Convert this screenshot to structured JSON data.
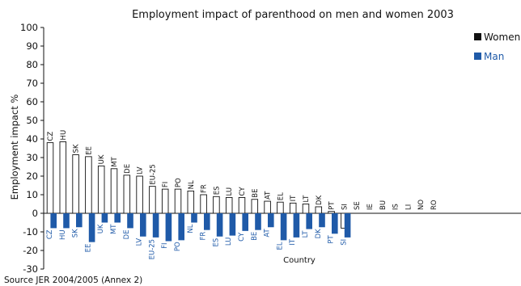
{
  "chart_data": {
    "type": "bar",
    "title": "Employment impact of parenthood on men and women 2003",
    "xlabel": "Country",
    "ylabel": "Employment impact %",
    "ylim": [
      -30,
      100
    ],
    "yticks": [
      -30,
      -20,
      -10,
      0,
      10,
      20,
      30,
      40,
      50,
      60,
      70,
      80,
      90,
      100
    ],
    "legend_position": "top-right",
    "categories_women": [
      "CZ",
      "HU",
      "SK",
      "EE",
      "UK",
      "MT",
      "DE",
      "LV",
      "EU-25",
      "FI",
      "PO",
      "NL",
      "FR",
      "ES",
      "LU",
      "CY",
      "BE",
      "AT",
      "EL",
      "IT",
      "LT",
      "DK",
      "PT",
      "SI",
      "SE",
      "IE",
      "BU",
      "IS",
      "LI",
      "NO",
      "RO"
    ],
    "categories_men": [
      "CZ",
      "HU",
      "SK",
      "EE",
      "UK",
      "MT",
      "DE",
      "LV",
      "EU-25",
      "FI",
      "PO",
      "NL",
      "FR",
      "ES",
      "LU",
      "CY",
      "BE",
      "AT",
      "EL",
      "IT",
      "LT",
      "DK",
      "PT",
      "SI"
    ],
    "series": [
      {
        "name": "Women",
        "color": "#ffffff",
        "values": [
          38,
          38.5,
          31.5,
          30.5,
          25.5,
          24,
          20.5,
          20,
          14.5,
          13,
          13,
          12,
          10,
          9,
          8.5,
          8.5,
          7.5,
          6.5,
          6,
          5.5,
          5,
          3.5,
          1,
          -8
        ]
      },
      {
        "name": "Man",
        "color": "#1f5aa8",
        "values": [
          -8,
          -8,
          -7.5,
          -15.5,
          -5,
          -5,
          -8,
          -12.5,
          -13,
          -15,
          -14.5,
          -5,
          -9,
          -12.5,
          -12,
          -9.5,
          -9,
          -7.5,
          -14.5,
          -13,
          -8.5,
          -7.5,
          -11,
          -13
        ]
      }
    ],
    "source": "Source JER 2004/2005 (Annex 2)"
  }
}
